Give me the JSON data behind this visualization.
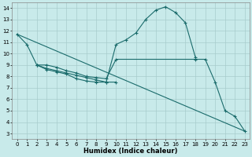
{
  "title": "",
  "xlabel": "Humidex (Indice chaleur)",
  "bg_color": "#c8eaea",
  "line_color": "#1a6b6b",
  "grid_color": "#a8cccc",
  "xlim": [
    -0.5,
    23.5
  ],
  "ylim": [
    2.5,
    14.5
  ],
  "xticks": [
    0,
    1,
    2,
    3,
    4,
    5,
    6,
    7,
    8,
    9,
    10,
    11,
    12,
    13,
    14,
    15,
    16,
    17,
    18,
    19,
    20,
    21,
    22,
    23
  ],
  "yticks": [
    3,
    4,
    5,
    6,
    7,
    8,
    9,
    10,
    11,
    12,
    13,
    14
  ],
  "line1_x": [
    0,
    1,
    2,
    3,
    4,
    5,
    6,
    7,
    8,
    9,
    10,
    11,
    12,
    13,
    14,
    15,
    16,
    17,
    18
  ],
  "line1_y": [
    11.7,
    10.8,
    9.0,
    8.6,
    8.4,
    8.2,
    7.8,
    7.6,
    7.5,
    7.5,
    10.8,
    11.2,
    11.8,
    13.0,
    13.8,
    14.1,
    13.6,
    12.7,
    9.7
  ],
  "line2_x": [
    0,
    23
  ],
  "line2_y": [
    11.7,
    3.2
  ],
  "line3_x": [
    2,
    3,
    4,
    5,
    6,
    7,
    8,
    9,
    10,
    18,
    19,
    20,
    21,
    22,
    23
  ],
  "line3_y": [
    9.0,
    9.0,
    8.8,
    8.5,
    8.3,
    8.0,
    7.9,
    7.8,
    9.5,
    9.5,
    9.5,
    7.5,
    5.0,
    4.5,
    3.2
  ],
  "line4_x": [
    2,
    3,
    4,
    5,
    6,
    7,
    8,
    9,
    10
  ],
  "line4_y": [
    9.0,
    8.7,
    8.5,
    8.3,
    8.1,
    7.9,
    7.7,
    7.5,
    7.5
  ]
}
